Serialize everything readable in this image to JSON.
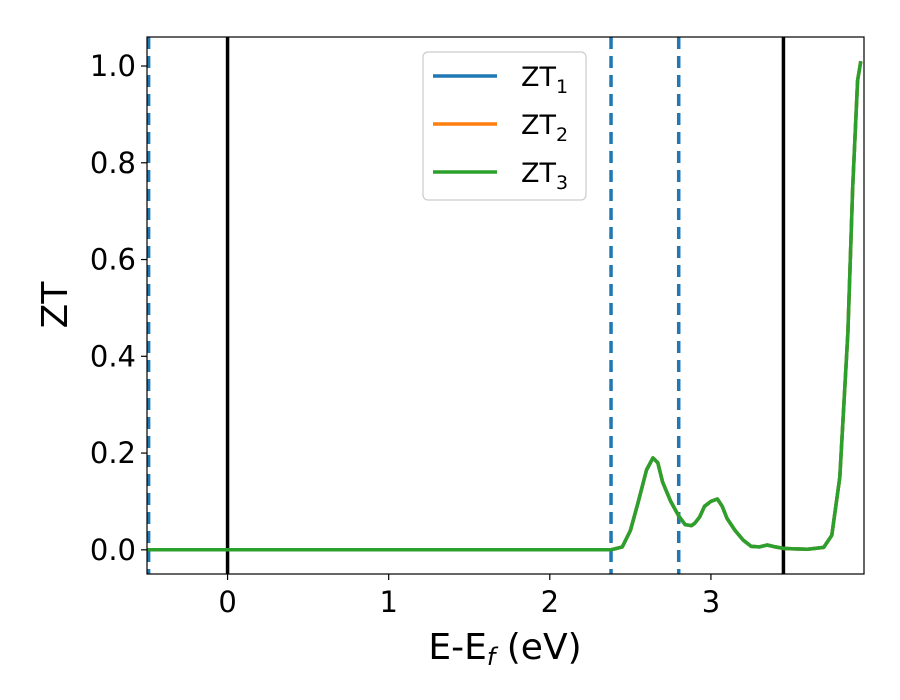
{
  "chart_data": {
    "type": "line",
    "xlabel_main": "E-E",
    "xlabel_sub": "f",
    "xlabel_unit": " (eV)",
    "ylabel": "ZT",
    "xlim": [
      -0.5,
      3.95
    ],
    "ylim": [
      -0.05,
      1.06
    ],
    "xticks": [
      0,
      1,
      2,
      3
    ],
    "yticks": [
      0.0,
      0.2,
      0.4,
      0.6,
      0.8,
      1.0
    ],
    "ytick_labels": [
      "0.0",
      "0.2",
      "0.4",
      "0.6",
      "0.8",
      "1.0"
    ],
    "grid": false,
    "legend_position": "top-center",
    "vlines_solid": [
      0.0,
      3.45
    ],
    "vlines_dashed": [
      -0.49,
      2.38,
      2.8
    ],
    "series": [
      {
        "name": "ZT",
        "sub": "1",
        "color": "#1f77b4",
        "points": [
          [
            -0.5,
            0
          ],
          [
            2.38,
            0
          ],
          [
            2.45,
            0.006
          ],
          [
            2.5,
            0.04
          ],
          [
            2.55,
            0.1
          ],
          [
            2.6,
            0.165
          ],
          [
            2.64,
            0.19
          ],
          [
            2.67,
            0.18
          ],
          [
            2.7,
            0.14
          ],
          [
            2.75,
            0.1
          ],
          [
            2.8,
            0.07
          ],
          [
            2.84,
            0.052
          ],
          [
            2.88,
            0.05
          ],
          [
            2.9,
            0.055
          ],
          [
            2.93,
            0.068
          ],
          [
            2.96,
            0.09
          ],
          [
            3.0,
            0.1
          ],
          [
            3.04,
            0.105
          ],
          [
            3.07,
            0.09
          ],
          [
            3.1,
            0.065
          ],
          [
            3.15,
            0.04
          ],
          [
            3.2,
            0.02
          ],
          [
            3.25,
            0.007
          ],
          [
            3.3,
            0.006
          ],
          [
            3.35,
            0.01
          ],
          [
            3.4,
            0.006
          ],
          [
            3.45,
            0.003
          ],
          [
            3.5,
            0.002
          ],
          [
            3.6,
            0.001
          ],
          [
            3.7,
            0.005
          ],
          [
            3.75,
            0.03
          ],
          [
            3.8,
            0.15
          ],
          [
            3.85,
            0.45
          ],
          [
            3.88,
            0.75
          ],
          [
            3.91,
            0.97
          ],
          [
            3.93,
            1.01
          ]
        ]
      },
      {
        "name": "ZT",
        "sub": "2",
        "color": "#ff7f0e",
        "points": [
          [
            -0.5,
            0
          ],
          [
            2.38,
            0
          ],
          [
            2.45,
            0.006
          ],
          [
            2.5,
            0.04
          ],
          [
            2.55,
            0.1
          ],
          [
            2.6,
            0.165
          ],
          [
            2.64,
            0.19
          ],
          [
            2.67,
            0.18
          ],
          [
            2.7,
            0.14
          ],
          [
            2.75,
            0.1
          ],
          [
            2.8,
            0.07
          ],
          [
            2.84,
            0.052
          ],
          [
            2.88,
            0.05
          ],
          [
            2.9,
            0.055
          ],
          [
            2.93,
            0.068
          ],
          [
            2.96,
            0.09
          ],
          [
            3.0,
            0.1
          ],
          [
            3.04,
            0.105
          ],
          [
            3.07,
            0.09
          ],
          [
            3.1,
            0.065
          ],
          [
            3.15,
            0.04
          ],
          [
            3.2,
            0.02
          ],
          [
            3.25,
            0.007
          ],
          [
            3.3,
            0.006
          ],
          [
            3.35,
            0.01
          ],
          [
            3.4,
            0.006
          ],
          [
            3.45,
            0.003
          ],
          [
            3.5,
            0.002
          ],
          [
            3.6,
            0.001
          ],
          [
            3.7,
            0.005
          ],
          [
            3.75,
            0.03
          ],
          [
            3.8,
            0.15
          ],
          [
            3.85,
            0.45
          ],
          [
            3.88,
            0.75
          ],
          [
            3.91,
            0.97
          ],
          [
            3.93,
            1.01
          ]
        ]
      },
      {
        "name": "ZT",
        "sub": "3",
        "color": "#2ca02c",
        "points": [
          [
            -0.5,
            0
          ],
          [
            2.38,
            0
          ],
          [
            2.45,
            0.006
          ],
          [
            2.5,
            0.04
          ],
          [
            2.55,
            0.1
          ],
          [
            2.6,
            0.165
          ],
          [
            2.64,
            0.19
          ],
          [
            2.67,
            0.18
          ],
          [
            2.7,
            0.14
          ],
          [
            2.75,
            0.1
          ],
          [
            2.8,
            0.07
          ],
          [
            2.84,
            0.052
          ],
          [
            2.88,
            0.05
          ],
          [
            2.9,
            0.055
          ],
          [
            2.93,
            0.068
          ],
          [
            2.96,
            0.09
          ],
          [
            3.0,
            0.1
          ],
          [
            3.04,
            0.105
          ],
          [
            3.07,
            0.09
          ],
          [
            3.1,
            0.065
          ],
          [
            3.15,
            0.04
          ],
          [
            3.2,
            0.02
          ],
          [
            3.25,
            0.007
          ],
          [
            3.3,
            0.006
          ],
          [
            3.35,
            0.01
          ],
          [
            3.4,
            0.006
          ],
          [
            3.45,
            0.003
          ],
          [
            3.5,
            0.002
          ],
          [
            3.6,
            0.001
          ],
          [
            3.7,
            0.005
          ],
          [
            3.75,
            0.03
          ],
          [
            3.8,
            0.15
          ],
          [
            3.85,
            0.45
          ],
          [
            3.88,
            0.75
          ],
          [
            3.91,
            0.97
          ],
          [
            3.93,
            1.01
          ]
        ]
      }
    ]
  }
}
